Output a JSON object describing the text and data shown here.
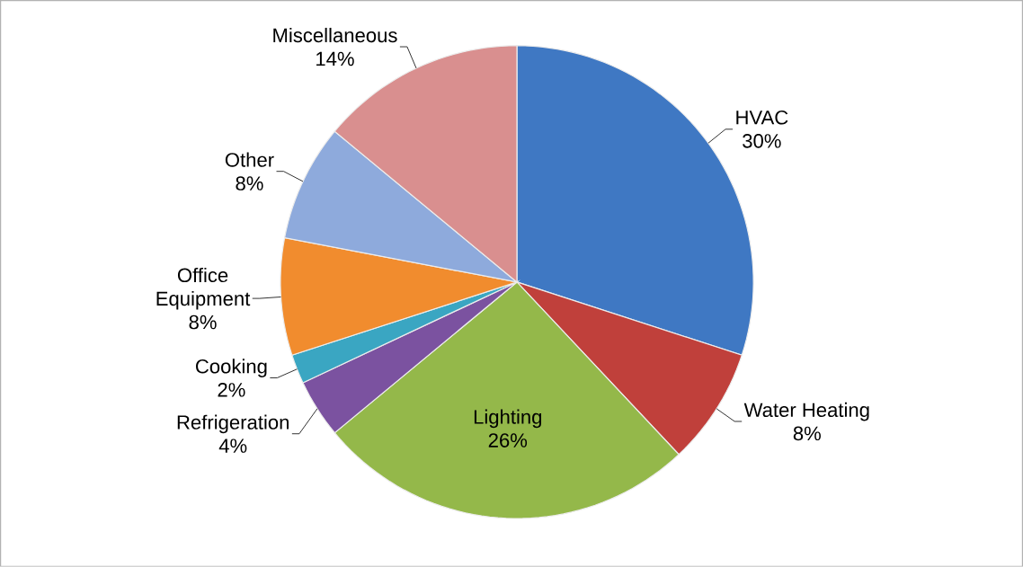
{
  "chart_data": {
    "type": "pie",
    "categories": [
      "HVAC",
      "Water Heating",
      "Lighting",
      "Refrigeration",
      "Cooking",
      "Office Equipment",
      "Other",
      "Miscellaneous"
    ],
    "values": [
      30,
      8,
      26,
      4,
      2,
      8,
      8,
      14
    ],
    "value_labels": [
      "30%",
      "8%",
      "26%",
      "4%",
      "2%",
      "8%",
      "8%",
      "14%"
    ],
    "colors": [
      "#3f78c3",
      "#c0403b",
      "#94b84a",
      "#7b52a0",
      "#3aa6c2",
      "#f18c2e",
      "#8eaadc",
      "#d98f8f"
    ]
  }
}
